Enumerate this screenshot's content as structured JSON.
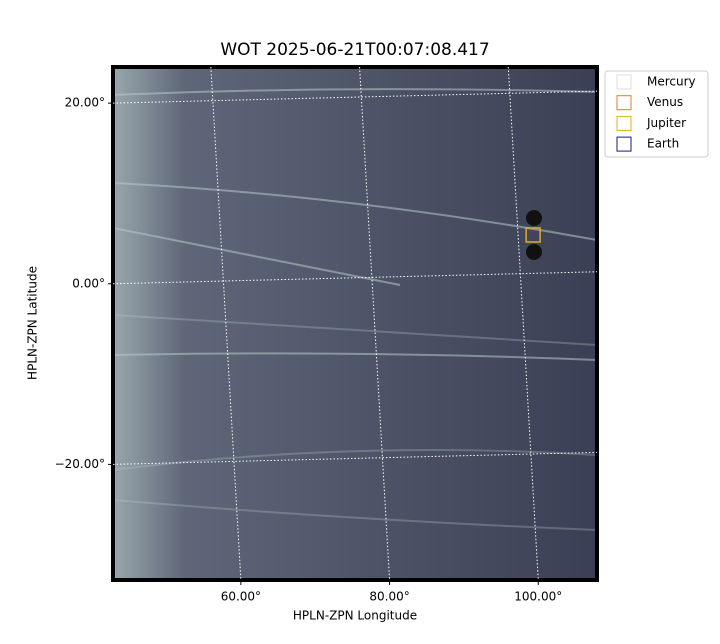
{
  "chart_data": {
    "type": "image",
    "title": "WOT 2025-06-21T00:07:08.417",
    "x_label": "HPLN-ZPN Longitude",
    "y_label": "HPLN-ZPN Latitude",
    "xlim": [
      42.8,
      107.9
    ],
    "ylim": [
      -32.8,
      24.0
    ],
    "xticks": [
      {
        "value": 60,
        "label": "60.00°"
      },
      {
        "value": 80,
        "label": "80.00°"
      },
      {
        "value": 100,
        "label": "100.00°"
      }
    ],
    "yticks": [
      {
        "value": 20,
        "label": "20.00°"
      },
      {
        "value": 0,
        "label": "0.00°"
      },
      {
        "value": -20,
        "label": "−20.00°"
      }
    ],
    "grid": true,
    "legend": "upper right",
    "series": [
      {
        "name": "Mercury",
        "color": "#dddddd",
        "x": [
          99.3
        ],
        "y": [
          5.4
        ]
      },
      {
        "name": "Venus",
        "color": "#e07b39",
        "x": [
          99.3
        ],
        "y": [
          5.4
        ]
      },
      {
        "name": "Jupiter",
        "color": "#e0b020",
        "x": [
          99.3
        ],
        "y": [
          5.4
        ]
      },
      {
        "name": "Earth",
        "color": "#1a1a7a",
        "x": [],
        "y": []
      }
    ]
  }
}
